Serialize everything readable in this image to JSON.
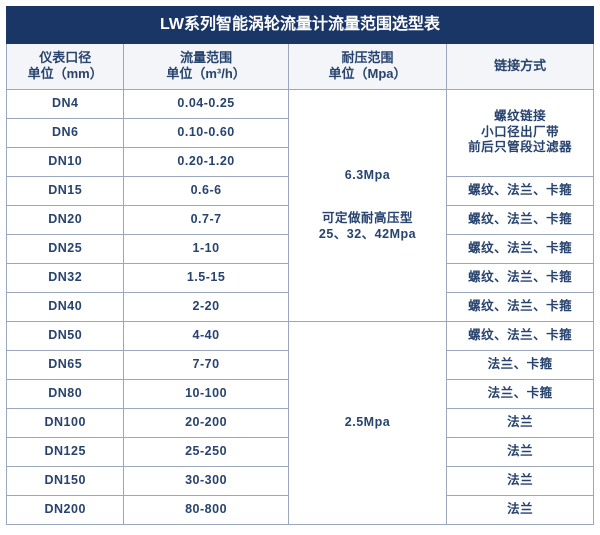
{
  "title": "LW系列智能涡轮流量计流量范围选型表",
  "headers": {
    "col1_l1": "仪表口径",
    "col1_l2": "单位（mm）",
    "col2_l1": "流量范围",
    "col2_l2": "单位（m³/h）",
    "col3_l1": "耐压范围",
    "col3_l2": "单位（Mpa）",
    "col4": "链接方式"
  },
  "press1": {
    "main": "6.3Mpa",
    "sub1": "可定做耐高压型",
    "sub2": "25、32、42Mpa"
  },
  "press2": "2.5Mpa",
  "conn_small": {
    "l1": "螺纹链接",
    "l2": "小口径出厂带",
    "l3": "前后只管段过滤器"
  },
  "rows": [
    {
      "dn": "DN4",
      "range": "0.04-0.25"
    },
    {
      "dn": "DN6",
      "range": "0.10-0.60"
    },
    {
      "dn": "DN10",
      "range": "0.20-1.20"
    },
    {
      "dn": "DN15",
      "range": "0.6-6",
      "conn": "螺纹、法兰、卡箍"
    },
    {
      "dn": "DN20",
      "range": "0.7-7",
      "conn": "螺纹、法兰、卡箍"
    },
    {
      "dn": "DN25",
      "range": "1-10",
      "conn": "螺纹、法兰、卡箍"
    },
    {
      "dn": "DN32",
      "range": "1.5-15",
      "conn": "螺纹、法兰、卡箍"
    },
    {
      "dn": "DN40",
      "range": "2-20",
      "conn": "螺纹、法兰、卡箍"
    },
    {
      "dn": "DN50",
      "range": "4-40",
      "conn": "螺纹、法兰、卡箍"
    },
    {
      "dn": "DN65",
      "range": "7-70",
      "conn": "法兰、卡箍"
    },
    {
      "dn": "DN80",
      "range": "10-100",
      "conn": "法兰、卡箍"
    },
    {
      "dn": "DN100",
      "range": "20-200",
      "conn": "法兰"
    },
    {
      "dn": "DN125",
      "range": "25-250",
      "conn": "法兰"
    },
    {
      "dn": "DN150",
      "range": "30-300",
      "conn": "法兰"
    },
    {
      "dn": "DN200",
      "range": "80-800",
      "conn": "法兰"
    }
  ],
  "colors": {
    "header_bg": "#1a3666",
    "head_row_bg": "#f3f5f8",
    "text": "#27436e",
    "border": "#9aa7bd"
  }
}
